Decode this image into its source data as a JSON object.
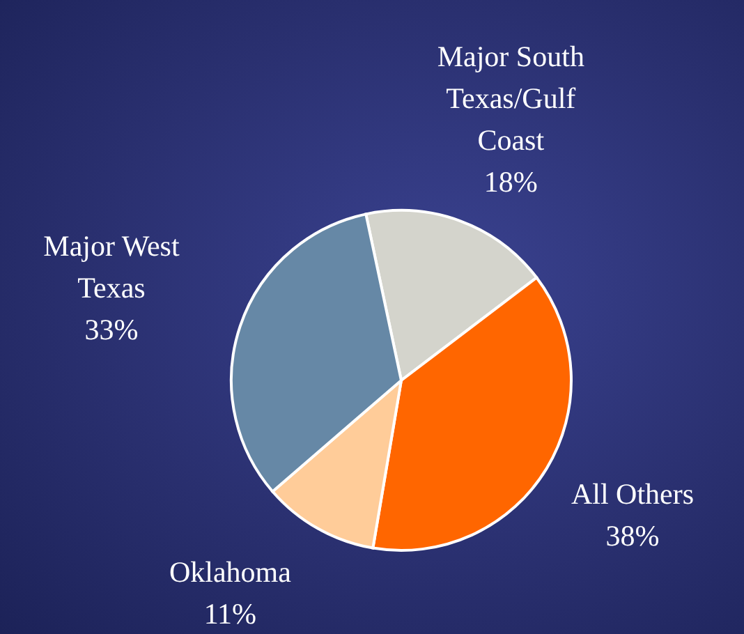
{
  "chart_data": {
    "type": "pie",
    "categories": [
      "Major South Texas/Gulf Coast",
      "All Others",
      "Oklahoma",
      "Major West Texas"
    ],
    "values": [
      18,
      38,
      11,
      33
    ],
    "value_labels": [
      "18%",
      "38%",
      "11%",
      "33%"
    ],
    "colors": [
      "#d4d4cc",
      "#ff6600",
      "#ffcc99",
      "#6688a6"
    ],
    "legend": false
  }
}
